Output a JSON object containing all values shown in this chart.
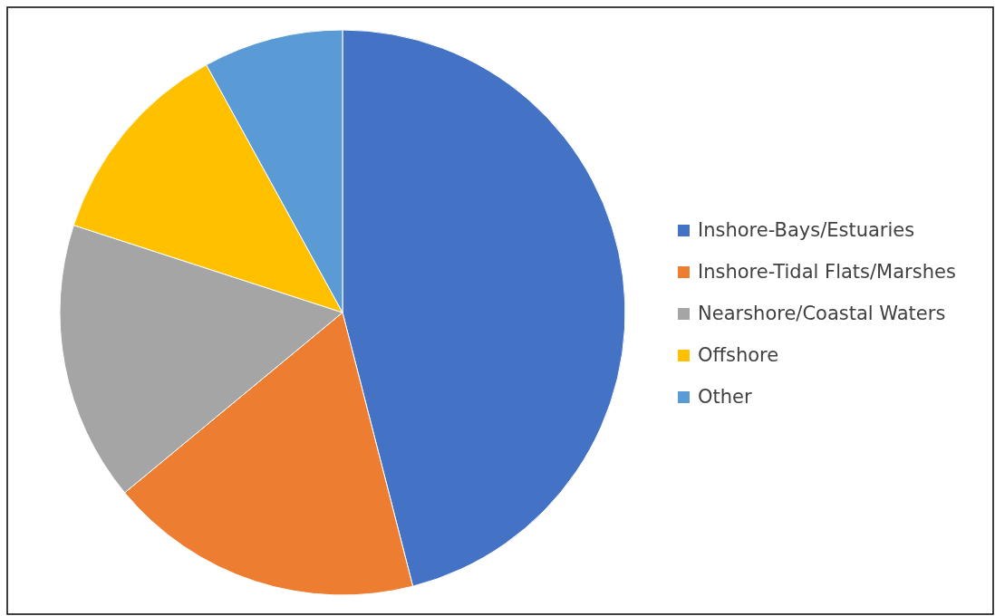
{
  "chart_data": {
    "type": "pie",
    "categories": [
      "Inshore-Bays/Estuaries",
      "Inshore-Tidal Flats/Marshes",
      "Nearshore/Coastal Waters",
      "Offshore",
      "Other"
    ],
    "values": [
      46,
      18,
      16,
      12,
      8
    ],
    "colors": [
      "#4472c4",
      "#ed7d31",
      "#a5a5a5",
      "#ffc000",
      "#5b9bd5"
    ],
    "legend": "right"
  }
}
